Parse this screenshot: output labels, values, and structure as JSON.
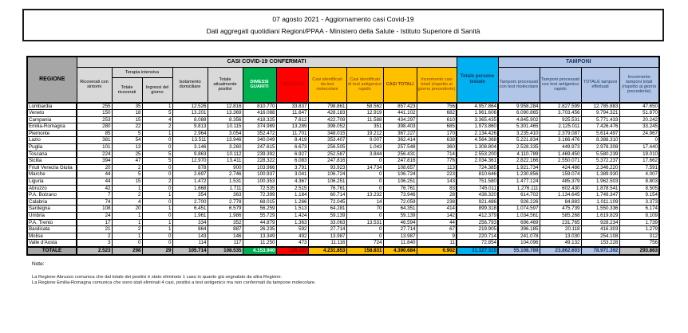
{
  "title": {
    "line1": "07 agosto 2021 - Aggiornamento casi Covid-19",
    "line2": "Dati aggregati quotidiani Regioni/PPAA - Ministero della Salute - Istituto Superiore di Sanità"
  },
  "colors": {
    "dimessi_green": "#00b050",
    "deceduti_red": "#ff0000",
    "casi_yellow": "#ffc000",
    "persone_testate_cyan": "#00b0f0",
    "tamponi_blue": "#b4c6e7",
    "header_gray": "#d9d9d9",
    "regione_gray": "#a6a6a6",
    "totale_gray": "#bfbfbf"
  },
  "table": {
    "headers": {
      "casi_confermati": "CASI COVID-19 CONFERMATI",
      "tamponi": "TAMPONI",
      "regione": "REGIONE",
      "terapia_intensiva": "Terapia intensiva",
      "ricoverati": "Ricoverati con sintomi",
      "ti_totale": "Totale ricoverati",
      "ti_ingressi": "Ingressi del giorno",
      "isolamento": "Isolamento domiciliare",
      "positivi": "Totale attualmente positivi",
      "dimessi": "DIMESSI GUARITI",
      "deceduti": "DECEDUTI",
      "casi_molecolare": "Casi identificati da test molecolare",
      "casi_antigenico": "Casi identificati di test antigenico rapido",
      "casi_totali": "CASI TOTALI",
      "incremento_casi": "Incremento casi totali (rispetto al giorno precedente)",
      "persone_testate": "Totale persone testate",
      "tamponi_molecolare": "Tamponi processati con test molecolare",
      "tamponi_antigenico": "Tamponi processati con test antigenico rapido",
      "tamponi_totale": "TOTALE tamponi effettuati",
      "incremento_tamponi": "Incremento tamponi totali (rispetto al giorno precedente)"
    },
    "column_keys": [
      "ricoverati_con_sintomi",
      "terapia_intensiva_totale",
      "terapia_intensiva_ingressi",
      "isolamento_domiciliare",
      "totale_attualmente_positivi",
      "dimessi_guariti",
      "deceduti",
      "casi_test_molecolare",
      "casi_test_antigenico",
      "casi_totali",
      "incremento_casi_totali",
      "totale_persone_testate",
      "tamponi_test_molecolare",
      "tamponi_test_antigenico",
      "totale_tamponi_effettuati",
      "incremento_tamponi_totali"
    ],
    "rows": [
      {
        "regione": "Lombardia",
        "values": [
          "255",
          "35",
          "1",
          "12.526",
          "12.816",
          "810.770",
          "33.837",
          "798.861",
          "58.562",
          "857.423",
          "756",
          "4.957.864",
          "9.958.284",
          "2.827.599",
          "12.785.883",
          "47.650"
        ]
      },
      {
        "regione": "Veneto",
        "values": [
          "150",
          "18",
          "5",
          "13.201",
          "13.369",
          "416.088",
          "11.647",
          "428.183",
          "12.919",
          "441.102",
          "682",
          "1.961.606",
          "6.090.865",
          "3.703.456",
          "9.794.321",
          "51.870"
        ]
      },
      {
        "regione": "Campania",
        "values": [
          "253",
          "15",
          "4",
          "8.088",
          "8.356",
          "418.325",
          "7.612",
          "422.709",
          "11.588",
          "434.297",
          "610",
          "3.365.435",
          "4.845.902",
          "925.531",
          "5.771.433",
          "20.242"
        ]
      },
      {
        "regione": "Emilia-Romagna",
        "values": [
          "280",
          "22",
          "2",
          "9.813",
          "10.115",
          "374.989",
          "13.289",
          "398.052",
          "351",
          "398.403",
          "685",
          "1.973.860",
          "5.301.465",
          "2.125.011",
          "7.426.476",
          "33.245"
        ]
      },
      {
        "regione": "Piemonte",
        "values": [
          "85",
          "5",
          "1",
          "2.964",
          "3.054",
          "352.472",
          "11.701",
          "348.015",
          "19.212",
          "367.227",
          "170",
          "2.134.426",
          "3.235.410",
          "2.379.087",
          "5.614.497",
          "24.967"
        ]
      },
      {
        "regione": "Lazio",
        "values": [
          "381",
          "54",
          "0",
          "13.511",
          "13.946",
          "340.049",
          "8.419",
          "353.407",
          "9.007",
          "362.414",
          "638",
          "4.564.368",
          "5.221.834",
          "3.166.476",
          "8.388.310",
          "0"
        ]
      },
      {
        "regione": "Puglia",
        "values": [
          "101",
          "13",
          "0",
          "3.146",
          "3.260",
          "247.615",
          "6.673",
          "256.505",
          "1.043",
          "257.548",
          "360",
          "1.308.804",
          "2.528.335",
          "449.973",
          "2.978.308",
          "17.440"
        ]
      },
      {
        "regione": "Toscana",
        "values": [
          "224",
          "25",
          "5",
          "9.863",
          "10.112",
          "239.392",
          "6.927",
          "252.587",
          "3.844",
          "256.431",
          "714",
          "2.553.200",
          "4.110.789",
          "1.469.450",
          "5.580.239",
          "19.010"
        ]
      },
      {
        "regione": "Sicilia",
        "values": [
          "394",
          "47",
          "5",
          "12.970",
          "13.411",
          "228.322",
          "6.083",
          "247.816",
          "0",
          "247.816",
          "776",
          "2.034.361",
          "2.822.166",
          "2.550.071",
          "5.372.237",
          "17.662"
        ]
      },
      {
        "regione": "Friuli Venezia Giulia",
        "values": [
          "20",
          "2",
          "0",
          "878",
          "900",
          "103.966",
          "3.791",
          "93.923",
          "14.734",
          "108.657",
          "113",
          "724.385",
          "1.921.734",
          "424.486",
          "2.346.220",
          "7.591"
        ]
      },
      {
        "regione": "Marche",
        "values": [
          "44",
          "5",
          "0",
          "2.697",
          "2.746",
          "100.937",
          "3.041",
          "106.724",
          "0",
          "106.724",
          "223",
          "810.646",
          "1.230.856",
          "159.074",
          "1.389.930",
          "4.007"
        ]
      },
      {
        "regione": "Liguria",
        "values": [
          "44",
          "15",
          "2",
          "1.472",
          "1.531",
          "100.353",
          "4.367",
          "106.251",
          "0",
          "106.251",
          "143",
          "751.580",
          "1.477.124",
          "485.379",
          "1.962.503",
          "8.803"
        ]
      },
      {
        "regione": "Abruzzo",
        "values": [
          "42",
          "1",
          "0",
          "1.668",
          "1.711",
          "72.535",
          "2.515",
          "76.761",
          "0",
          "76.761",
          "83",
          "745.011",
          "1.276.111",
          "602.430",
          "1.878.541",
          "8.505"
        ]
      },
      {
        "regione": "P.A. Bolzano",
        "values": [
          "7",
          "2",
          "1",
          "354",
          "363",
          "72.399",
          "1.184",
          "60.714",
          "13.232",
          "73.946",
          "28",
          "438.320",
          "614.702",
          "1.134.645",
          "1.749.347",
          "9.154"
        ]
      },
      {
        "regione": "Calabria",
        "values": [
          "74",
          "4",
          "0",
          "2.700",
          "2.778",
          "68.015",
          "1.266",
          "72.045",
          "14",
          "72.059",
          "238",
          "921.486",
          "926.226",
          "84.883",
          "1.011.109",
          "3.373"
        ]
      },
      {
        "regione": "Sardegna",
        "values": [
          "108",
          "20",
          "1",
          "6.451",
          "6.579",
          "56.259",
          "1.513",
          "64.281",
          "70",
          "64.351",
          "414",
          "899.318",
          "1.074.597",
          "475.739",
          "1.550.336",
          "6.174"
        ]
      },
      {
        "regione": "Umbria",
        "values": [
          "24",
          "1",
          "0",
          "1.961",
          "1.986",
          "55.729",
          "1.424",
          "59.139",
          "0",
          "59.139",
          "142",
          "412.379",
          "1.034.561",
          "585.268",
          "1.619.829",
          "8.109"
        ]
      },
      {
        "regione": "P.A. Trento",
        "values": [
          "17",
          "1",
          "1",
          "334",
          "352",
          "44.879",
          "1.363",
          "33.063",
          "13.531",
          "46.594",
          "44",
          "256.793",
          "696.469",
          "231.765",
          "928.234",
          "1.739"
        ]
      },
      {
        "regione": "Basilicata",
        "values": [
          "21",
          "2",
          "1",
          "864",
          "887",
          "26.235",
          "592",
          "27.714",
          "0",
          "27.714",
          "67",
          "219.905",
          "396.185",
          "20.118",
          "416.303",
          "1.279"
        ]
      },
      {
        "regione": "Molise",
        "values": [
          "2",
          "1",
          "0",
          "143",
          "146",
          "13.349",
          "492",
          "13.987",
          "0",
          "13.987",
          "9",
          "220.714",
          "241.078",
          "13.030",
          "254.108",
          "312"
        ]
      },
      {
        "regione": "Valle d'Aosta",
        "values": [
          "3",
          "0",
          "0",
          "114",
          "117",
          "11.250",
          "473",
          "11.116",
          "724",
          "11.840",
          "11",
          "72.854",
          "104.096",
          "49.132",
          "153.228",
          "756"
        ]
      }
    ],
    "total_row": {
      "regione": "TOTALE",
      "values": [
        "2.523",
        "298",
        "29",
        "105.714",
        "108.535",
        "4.153.940",
        "128.209",
        "4.231.853",
        "158.831",
        "4.390.684",
        "6.902",
        "31.327.315",
        "55.108.789",
        "23.862.603",
        "78.971.392",
        "293.863"
      ]
    }
  },
  "notes": {
    "label": "Note:",
    "lines": [
      "La Regione Abruzzo comunica che dal totale dei positivi è stato eliminato 1 caso in quanto già segnalato da altra Regione.",
      "La Regione Emilia-Romagna comunica che sono stati eliminati 4 casi, positivi a test antigenico ma non confermati da tampone molecolare."
    ]
  }
}
